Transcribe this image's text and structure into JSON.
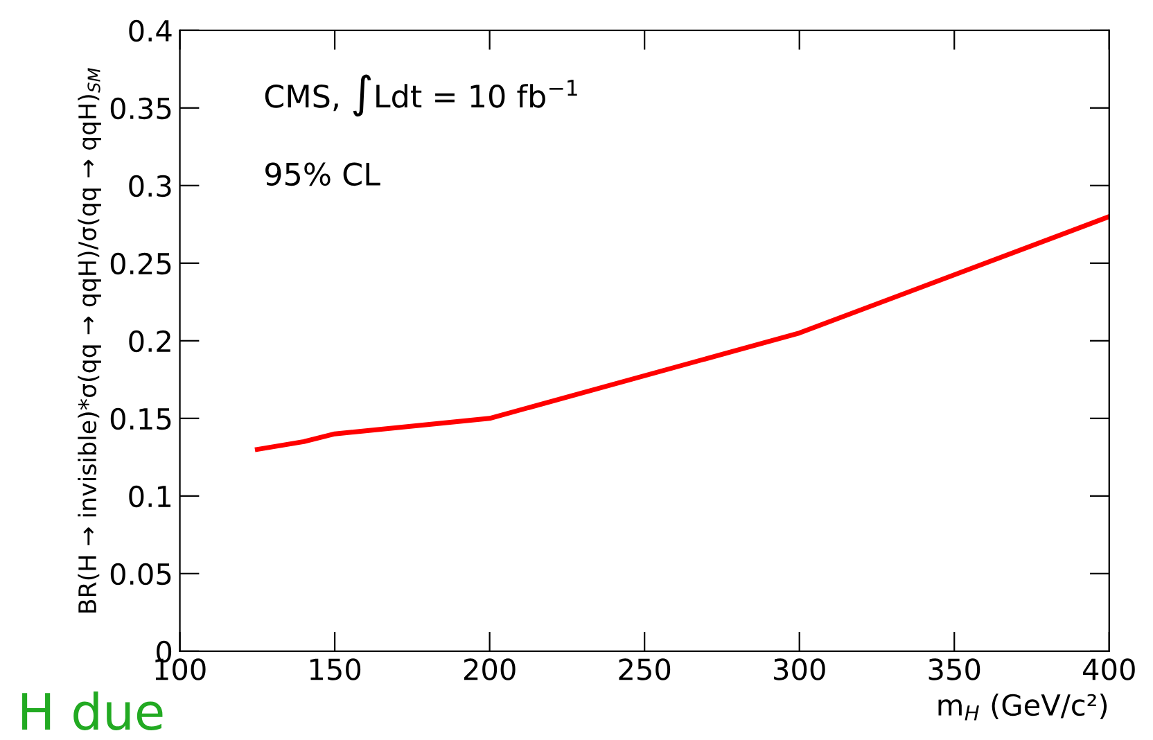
{
  "chart_data": {
    "type": "line",
    "xlabel": "m$_{H}$ (GeV/c²)",
    "ylabel": "BR(H → invisible)*σ(qq → qqH)/σ(qq → qqH)$_{SM}$",
    "x": [
      125,
      140,
      150,
      200,
      300,
      400
    ],
    "series": [
      {
        "color": "#ff0000",
        "values": [
          0.13,
          0.135,
          0.14,
          0.15,
          0.205,
          0.28
        ]
      }
    ],
    "xlim": [
      100,
      400
    ],
    "ylim": [
      0,
      0.4
    ],
    "xticks": [
      100,
      150,
      200,
      250,
      300,
      350,
      400
    ],
    "yticks": [
      0,
      0.05,
      0.1,
      0.15,
      0.2,
      0.25,
      0.3,
      0.35,
      0.4
    ],
    "grid": false,
    "legend": false,
    "marker": "none",
    "line_style": "solid",
    "annotations": [
      "CMS, ∫Ldt = 10 fb$^{−1}$",
      "95% CL",
      "H due"
    ]
  }
}
